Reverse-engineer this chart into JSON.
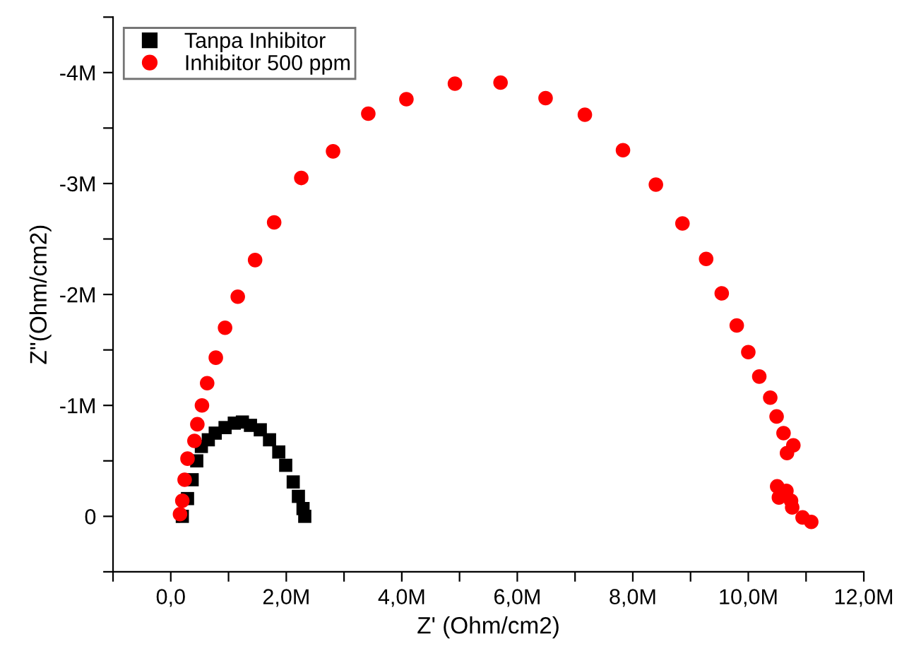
{
  "chart_data": {
    "type": "scatter",
    "xlabel": "Z' (Ohm/cm2)",
    "ylabel": "Z\"(Ohm/cm2)",
    "xlim": [
      -1000000,
      12000000
    ],
    "ylim": [
      500000,
      -4500000
    ],
    "xticks": [
      {
        "value": -1000000,
        "label": null
      },
      {
        "value": 0,
        "label": "0,0"
      },
      {
        "value": 1000000,
        "label": null
      },
      {
        "value": 2000000,
        "label": "2,0M"
      },
      {
        "value": 3000000,
        "label": null
      },
      {
        "value": 4000000,
        "label": "4,0M"
      },
      {
        "value": 5000000,
        "label": null
      },
      {
        "value": 6000000,
        "label": "6,0M"
      },
      {
        "value": 7000000,
        "label": null
      },
      {
        "value": 8000000,
        "label": "8,0M"
      },
      {
        "value": 9000000,
        "label": null
      },
      {
        "value": 10000000,
        "label": "10,0M"
      },
      {
        "value": 11000000,
        "label": null
      },
      {
        "value": 12000000,
        "label": "12,0M"
      }
    ],
    "yticks": [
      {
        "value": 500000,
        "label": null
      },
      {
        "value": 0,
        "label": "0"
      },
      {
        "value": -500000,
        "label": null
      },
      {
        "value": -1000000,
        "label": "-1M"
      },
      {
        "value": -1500000,
        "label": null
      },
      {
        "value": -2000000,
        "label": "-2M"
      },
      {
        "value": -2500000,
        "label": null
      },
      {
        "value": -3000000,
        "label": "-3M"
      },
      {
        "value": -3500000,
        "label": null
      },
      {
        "value": -4000000,
        "label": "-4M"
      },
      {
        "value": -4500000,
        "label": null
      }
    ],
    "grid": false,
    "legend": "top left",
    "series": [
      {
        "name": "Tanpa Inhibitor",
        "color": "#000000",
        "marker": "square",
        "x": [
          200000,
          290000,
          370000,
          450000,
          530000,
          650000,
          770000,
          940000,
          1100000,
          1240000,
          1380000,
          1550000,
          1710000,
          1870000,
          1990000,
          2120000,
          2210000,
          2290000,
          2320000
        ],
        "values": [
          0,
          -160000,
          -330000,
          -500000,
          -630000,
          -690000,
          -750000,
          -800000,
          -840000,
          -850000,
          -820000,
          -780000,
          -690000,
          -580000,
          -460000,
          -310000,
          -180000,
          -70000,
          0
        ]
      },
      {
        "name": "Inhibitor 500 ppm",
        "color": "#ff0000",
        "marker": "circle",
        "x": [
          160000,
          200000,
          240000,
          290000,
          410000,
          460000,
          540000,
          630000,
          780000,
          940000,
          1160000,
          1460000,
          1790000,
          2260000,
          2810000,
          3420000,
          4080000,
          4920000,
          5710000,
          6490000,
          7170000,
          7830000,
          8400000,
          8860000,
          9270000,
          9540000,
          9800000,
          10000000,
          10190000,
          10380000,
          10490000,
          10610000,
          10780000,
          10670000,
          10500000,
          10660000,
          10530000,
          10740000,
          10760000,
          10940000,
          11090000
        ],
        "values": [
          -20000,
          -140000,
          -330000,
          -520000,
          -680000,
          -830000,
          -1000000,
          -1200000,
          -1430000,
          -1700000,
          -1980000,
          -2310000,
          -2650000,
          -3050000,
          -3290000,
          -3630000,
          -3760000,
          -3900000,
          -3910000,
          -3770000,
          -3620000,
          -3300000,
          -2990000,
          -2640000,
          -2320000,
          -2010000,
          -1720000,
          -1480000,
          -1260000,
          -1070000,
          -900000,
          -750000,
          -640000,
          -570000,
          -270000,
          -230000,
          -170000,
          -140000,
          -80000,
          10000,
          50000
        ]
      }
    ]
  }
}
